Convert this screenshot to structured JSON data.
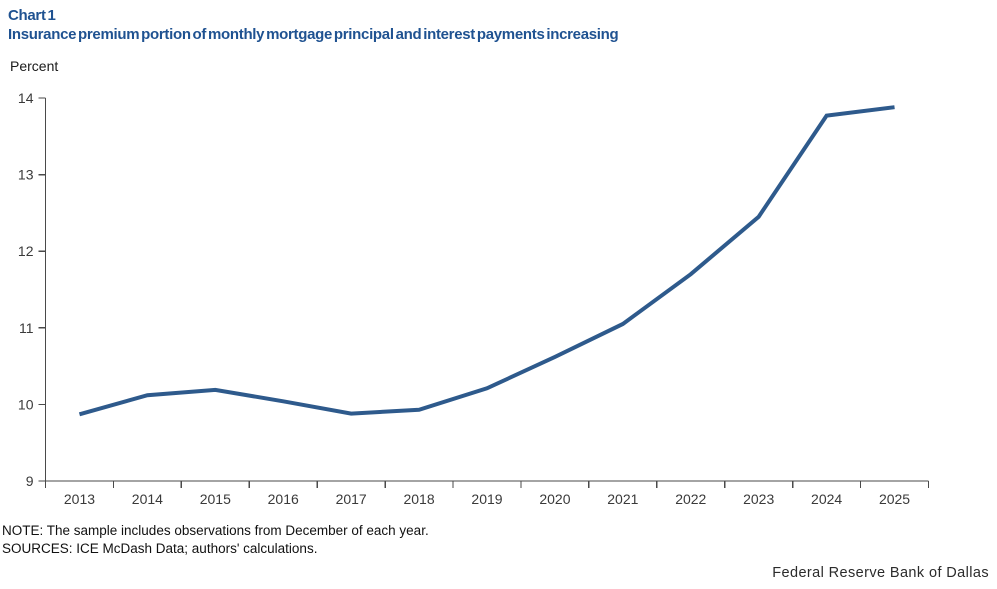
{
  "page": {
    "chart_label": "Chart 1",
    "title": "Insurance premium portion of monthly mortgage principal and interest payments increasing",
    "unit_label": "Percent",
    "note": "NOTE: The sample includes observations from December of each year.",
    "sources": "SOURCES: ICE McDash Data; authors' calculations.",
    "branding": "Federal Reserve Bank of Dallas"
  },
  "colors": {
    "title_blue": "#1F5291",
    "line_blue": "#2E5A8C",
    "axis_gray": "#4A4A4A",
    "tick_text": "#3A3A3A",
    "note_text": "#111111"
  },
  "chart_data": {
    "type": "line",
    "title": "Insurance premium portion of monthly mortgage principal and interest payments increasing",
    "xlabel": "",
    "ylabel": "Percent",
    "x": [
      2013,
      2014,
      2015,
      2016,
      2017,
      2018,
      2019,
      2020,
      2021,
      2022,
      2023,
      2024,
      2025
    ],
    "values": [
      9.87,
      10.12,
      10.19,
      10.04,
      9.88,
      9.93,
      10.21,
      10.62,
      11.05,
      11.7,
      12.45,
      13.77,
      13.88
    ],
    "ylim": [
      9,
      14
    ],
    "yticks": [
      9,
      10,
      11,
      12,
      13,
      14
    ],
    "grid": false,
    "legend": "none"
  }
}
